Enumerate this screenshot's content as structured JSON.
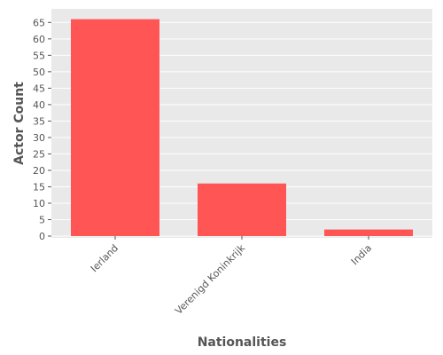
{
  "chart_data": {
    "type": "bar",
    "categories": [
      "Ierland",
      "Verenigd Koninkrijk",
      "India"
    ],
    "values": [
      66,
      16,
      2
    ],
    "xlabel": "Nationalities",
    "ylabel": "Actor Count",
    "ylim": [
      0,
      68
    ],
    "yticks": [
      0,
      5,
      10,
      15,
      20,
      25,
      30,
      35,
      40,
      45,
      50,
      55,
      60,
      65
    ],
    "grid": true,
    "legend": "none",
    "colors": {
      "bar": "#ff5555",
      "plot_background": "#e9e9e9",
      "grid": "#ffffff",
      "text": "#555555"
    }
  }
}
